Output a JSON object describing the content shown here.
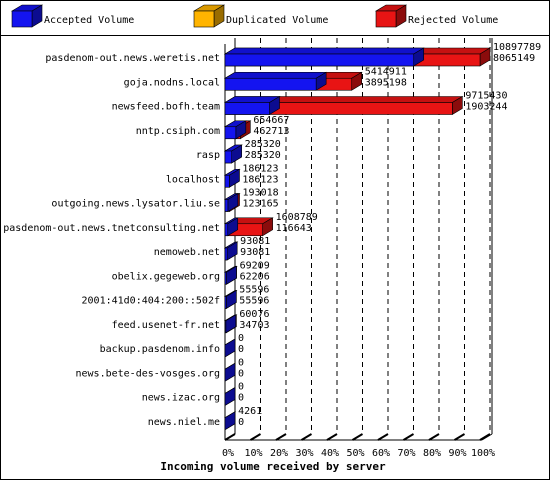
{
  "chart_data": {
    "type": "bar3d",
    "orientation": "horizontal",
    "x_label": "Incoming volume received by server",
    "legend": [
      {
        "name": "Accepted Volume",
        "color": "#1414f0"
      },
      {
        "name": "Duplicated Volume",
        "color": "#ffb400"
      },
      {
        "name": "Rejected Volume",
        "color": "#e81414"
      }
    ],
    "categories": [
      "pasdenom-out.news.weretis.net",
      "goja.nodns.local",
      "newsfeed.bofh.team",
      "nntp.csiph.com",
      "rasp",
      "localhost",
      "outgoing.news.lysator.liu.se",
      "pasdenom-out.news.tnetconsulting.net",
      "nemoweb.net",
      "obelix.gegeweb.org",
      "2001:41d0:404:200::502f",
      "feed.usenet-fr.net",
      "backup.pasdenom.info",
      "news.bete-des-vosges.org",
      "news.izac.org",
      "news.niel.me"
    ],
    "total_values": [
      10897789,
      5414911,
      9715430,
      654667,
      285320,
      186123,
      193018,
      1608789,
      93081,
      69209,
      55596,
      60076,
      0,
      0,
      0,
      4261
    ],
    "accepted_values": [
      8065149,
      3895198,
      1903244,
      462713,
      285320,
      186123,
      123165,
      116643,
      93081,
      62206,
      55596,
      34703,
      0,
      0,
      0,
      0
    ],
    "xlim": [
      0,
      10897789
    ],
    "xticks": [
      {
        "value": 0,
        "label": "0%"
      },
      {
        "value": 1089778.9,
        "label": "10%"
      },
      {
        "value": 2179557.8,
        "label": "20%"
      },
      {
        "value": 3269336.7,
        "label": "30%"
      },
      {
        "value": 4359115.6,
        "label": "40%"
      },
      {
        "value": 5448894.5,
        "label": "50%"
      },
      {
        "value": 6538673.4,
        "label": "60%"
      },
      {
        "value": 7628452.3,
        "label": "70%"
      },
      {
        "value": 8718231.2,
        "label": "80%"
      },
      {
        "value": 9808010.1,
        "label": "90%"
      },
      {
        "value": 10897789,
        "label": "100%"
      }
    ],
    "grid": true
  }
}
